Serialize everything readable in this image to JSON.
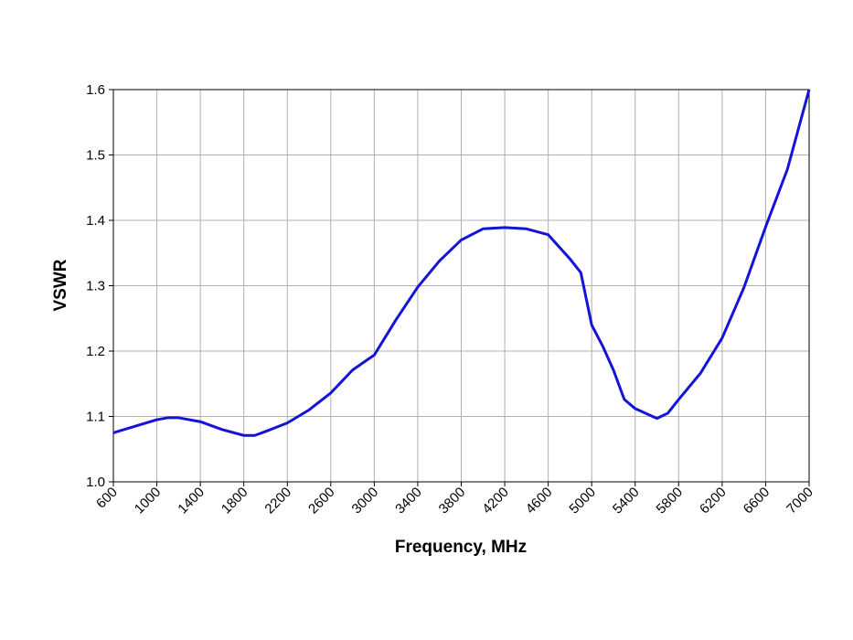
{
  "chart_data": {
    "type": "line",
    "xlabel": "Frequency, MHz",
    "ylabel": "VSWR",
    "xlim": [
      600,
      7000
    ],
    "ylim": [
      1.0,
      1.6
    ],
    "xticks": [
      600,
      1000,
      1400,
      1800,
      2200,
      2600,
      3000,
      3400,
      3800,
      4200,
      4600,
      5000,
      5400,
      5800,
      6200,
      6600,
      7000
    ],
    "yticks": [
      {
        "value": 1.0,
        "label": "1.0"
      },
      1.1,
      1.2,
      1.3,
      1.4,
      1.5,
      1.6
    ],
    "grid": true,
    "series": [
      {
        "color": "#1414d8",
        "x": [
          600,
          800,
          1000,
          1100,
          1200,
          1400,
          1600,
          1800,
          1900,
          2000,
          2200,
          2400,
          2600,
          2800,
          3000,
          3200,
          3400,
          3600,
          3800,
          4000,
          4200,
          4400,
          4600,
          4800,
          4900,
          5000,
          5100,
          5200,
          5300,
          5400,
          5600,
          5700,
          5800,
          6000,
          6200,
          6400,
          6600,
          6800,
          7000
        ],
        "values": [
          1.075,
          1.085,
          1.095,
          1.098,
          1.098,
          1.092,
          1.08,
          1.071,
          1.071,
          1.077,
          1.09,
          1.11,
          1.136,
          1.171,
          1.194,
          1.248,
          1.298,
          1.338,
          1.37,
          1.387,
          1.389,
          1.387,
          1.378,
          1.341,
          1.32,
          1.24,
          1.208,
          1.171,
          1.126,
          1.112,
          1.097,
          1.105,
          1.126,
          1.166,
          1.22,
          1.297,
          1.39,
          1.478,
          1.6
        ]
      }
    ]
  }
}
